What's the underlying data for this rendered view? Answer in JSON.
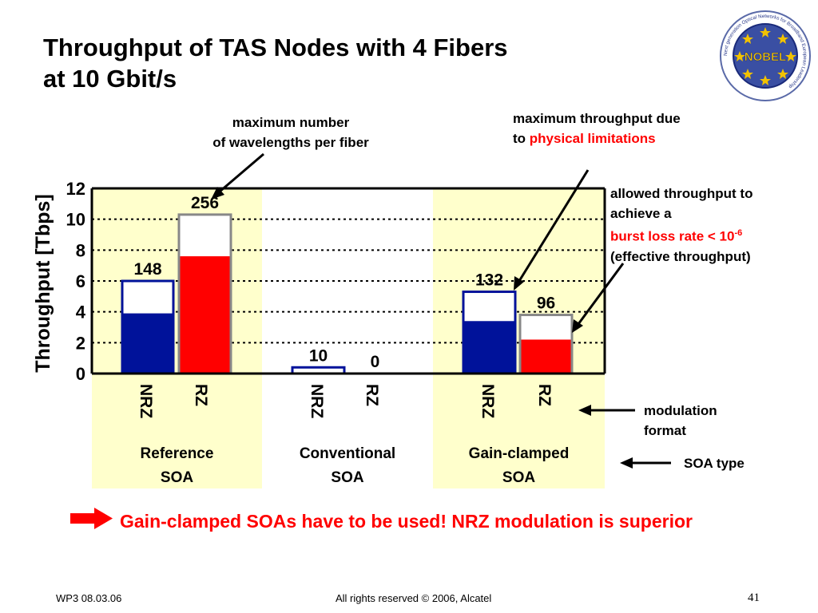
{
  "title_line1": "Throughput of TAS Nodes with 4 Fibers",
  "title_line2": "at 10 Gbit/s",
  "logo": {
    "text": "NOBEL",
    "ring_text": "Next generation Optical Networks for Broadband European Leadership"
  },
  "chart_data": {
    "type": "bar",
    "ylabel": "Throughput [Tbps]",
    "ylim": [
      0,
      12
    ],
    "yticks": [
      0,
      2,
      4,
      6,
      8,
      10,
      12
    ],
    "grid": true,
    "groups": [
      {
        "name_line1": "Reference",
        "name_line2": "SOA",
        "bars": [
          {
            "modulation": "NRZ",
            "max": 6,
            "effective": 3.9,
            "label": "148",
            "fill": "#00129a"
          },
          {
            "modulation": "RZ",
            "max": 10.3,
            "effective": 7.6,
            "label": "256",
            "fill": "#ff0000"
          }
        ]
      },
      {
        "name_line1": "Conventional",
        "name_line2": "SOA",
        "bars": [
          {
            "modulation": "NRZ",
            "max": 0.4,
            "effective": 0,
            "label": "10",
            "fill": "#00129a"
          },
          {
            "modulation": "RZ",
            "max": 0,
            "effective": 0,
            "label": "0",
            "fill": "#ff0000"
          }
        ]
      },
      {
        "name_line1": "Gain-clamped",
        "name_line2": "SOA",
        "bars": [
          {
            "modulation": "NRZ",
            "max": 5.3,
            "effective": 3.4,
            "label": "132",
            "fill": "#00129a"
          },
          {
            "modulation": "RZ",
            "max": 3.8,
            "effective": 2.2,
            "label": "96",
            "fill": "#ff0000"
          }
        ]
      }
    ]
  },
  "annotations": {
    "max_wavelengths_1": "maximum number",
    "max_wavelengths_2": "of wavelengths per fiber",
    "max_throughput_1": "maximum throughput due",
    "max_throughput_2a": "to ",
    "max_throughput_2b": "physical limitations",
    "allowed_1": "allowed throughput to",
    "allowed_2": "achieve a",
    "allowed_3a": "burst loss rate < 10",
    "allowed_3b": "-6",
    "allowed_4": "(effective throughput)",
    "modulation_1": "modulation",
    "modulation_2": "format",
    "soa_type": "SOA type"
  },
  "conclusion": "Gain-clamped SOAs have to be used! NRZ modulation is superior",
  "footer": {
    "left": "WP3 08.03.06",
    "center": "All rights reserved © 2006, Alcatel",
    "page": "41"
  },
  "colors": {
    "nrz": "#00129a",
    "rz": "#ff0000",
    "max_frame": "#888888",
    "soa_band": "#ffffcc",
    "accent": "#ff0000"
  }
}
